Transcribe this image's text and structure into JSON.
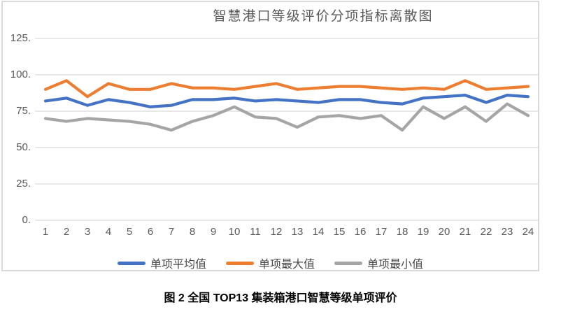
{
  "caption": "图 2 全国 TOP13 集装箱港口智慧等级单项评价",
  "colors": {
    "grid": "#D9D9D9",
    "frame_border": "#D9D9D9",
    "axis_text": "#595959",
    "title_text": "#595959",
    "series_average": "#4472C4",
    "series_max": "#ED7D31",
    "series_min": "#A5A5A5"
  },
  "chart_data": {
    "type": "line",
    "title": "智慧港口等级评价分项指标离散图",
    "x": [
      1,
      2,
      3,
      4,
      5,
      6,
      7,
      8,
      9,
      10,
      11,
      12,
      13,
      14,
      15,
      16,
      17,
      18,
      19,
      20,
      21,
      22,
      23,
      24
    ],
    "series": [
      {
        "name": "单项平均值",
        "color": "#4472C4",
        "values": [
          82,
          84,
          79,
          83,
          81,
          78,
          79,
          83,
          83,
          84,
          82,
          83,
          82,
          81,
          83,
          83,
          81,
          80,
          84,
          85,
          86,
          81,
          86,
          85
        ]
      },
      {
        "name": "单项最大值",
        "color": "#ED7D31",
        "values": [
          90,
          96,
          85,
          94,
          90,
          90,
          94,
          91,
          91,
          90,
          92,
          94,
          90,
          91,
          92,
          92,
          91,
          90,
          91,
          90,
          96,
          90,
          91,
          92
        ]
      },
      {
        "name": "单项最小值",
        "color": "#A5A5A5",
        "values": [
          70,
          68,
          70,
          69,
          68,
          66,
          62,
          68,
          72,
          78,
          71,
          70,
          64,
          71,
          72,
          70,
          72,
          62,
          78,
          70,
          78,
          68,
          80,
          72
        ]
      }
    ],
    "xlabel": "",
    "ylabel": "",
    "ylim": [
      0,
      125
    ],
    "yticks": [
      0,
      25,
      50,
      75,
      100,
      125
    ],
    "ytick_labels": [
      "0.",
      "25.",
      "50.",
      "75.",
      "100.",
      "125."
    ],
    "grid": true,
    "legend_position": "bottom"
  }
}
